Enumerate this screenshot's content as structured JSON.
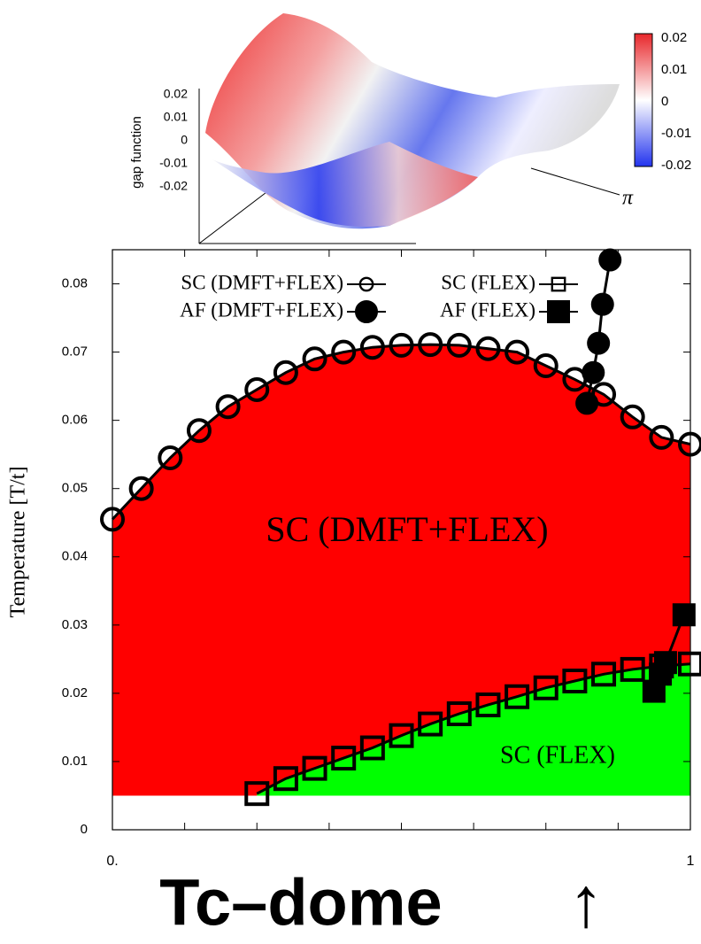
{
  "inset": {
    "zlabel": "gap function",
    "zticks": [
      0.02,
      0.01,
      0,
      -0.01,
      -0.02
    ],
    "colorbar_ticks": [
      0.02,
      0.01,
      0,
      -0.01,
      -0.02
    ],
    "axis_label": "π"
  },
  "chart_data": {
    "type": "line",
    "ylabel": "Temperature [T/t]",
    "xlim": [
      0,
      1
    ],
    "ylim": [
      0,
      0.085
    ],
    "xticks": [
      {
        "value": 0,
        "label": "0."
      },
      {
        "value": 1,
        "label": "1"
      }
    ],
    "xminorticks": [
      0.125,
      0.25,
      0.375,
      0.5,
      0.625,
      0.75,
      0.875
    ],
    "yticks": [
      0,
      0.01,
      0.02,
      0.03,
      0.04,
      0.05,
      0.06,
      0.07,
      0.08
    ],
    "fill_floor": 0.005,
    "annotations": [
      "SC (DMFT+FLEX)",
      "SC (FLEX)"
    ],
    "series": [
      {
        "name": "SC (DMFT+FLEX)",
        "marker": "open-circle",
        "fill": "#ff0000",
        "x": [
          0,
          0.05,
          0.1,
          0.15,
          0.2,
          0.25,
          0.3,
          0.35,
          0.4,
          0.45,
          0.5,
          0.55,
          0.6,
          0.65,
          0.7,
          0.75,
          0.8,
          0.85,
          0.9,
          0.95,
          1
        ],
        "values": [
          0.0455,
          0.05,
          0.0545,
          0.0585,
          0.062,
          0.0645,
          0.067,
          0.069,
          0.07,
          0.0707,
          0.071,
          0.0711,
          0.071,
          0.0705,
          0.07,
          0.068,
          0.066,
          0.0638,
          0.0605,
          0.0575,
          0.0565
        ]
      },
      {
        "name": "AF (DMFT+FLEX)",
        "marker": "filled-circle",
        "x": [
          0.821,
          0.832,
          0.841,
          0.848,
          0.861
        ],
        "values": [
          0.0625,
          0.067,
          0.0713,
          0.077,
          0.0835
        ]
      },
      {
        "name": "SC (FLEX)",
        "marker": "open-square",
        "fill": "#00ff00",
        "x": [
          0.25,
          0.3,
          0.35,
          0.4,
          0.45,
          0.5,
          0.55,
          0.6,
          0.65,
          0.7,
          0.75,
          0.8,
          0.85,
          0.9,
          0.95,
          1
        ],
        "values": [
          0.0053,
          0.0075,
          0.009,
          0.0105,
          0.012,
          0.0138,
          0.0155,
          0.017,
          0.0183,
          0.0195,
          0.0208,
          0.0218,
          0.0228,
          0.0235,
          0.024,
          0.0243
        ]
      },
      {
        "name": "AF (FLEX)",
        "marker": "filled-square",
        "x": [
          0.937,
          0.948,
          0.957,
          0.989
        ],
        "values": [
          0.0203,
          0.0228,
          0.0245,
          0.0315
        ]
      }
    ]
  },
  "caption": {
    "text": "Tc–dome",
    "arrow": "↑"
  }
}
